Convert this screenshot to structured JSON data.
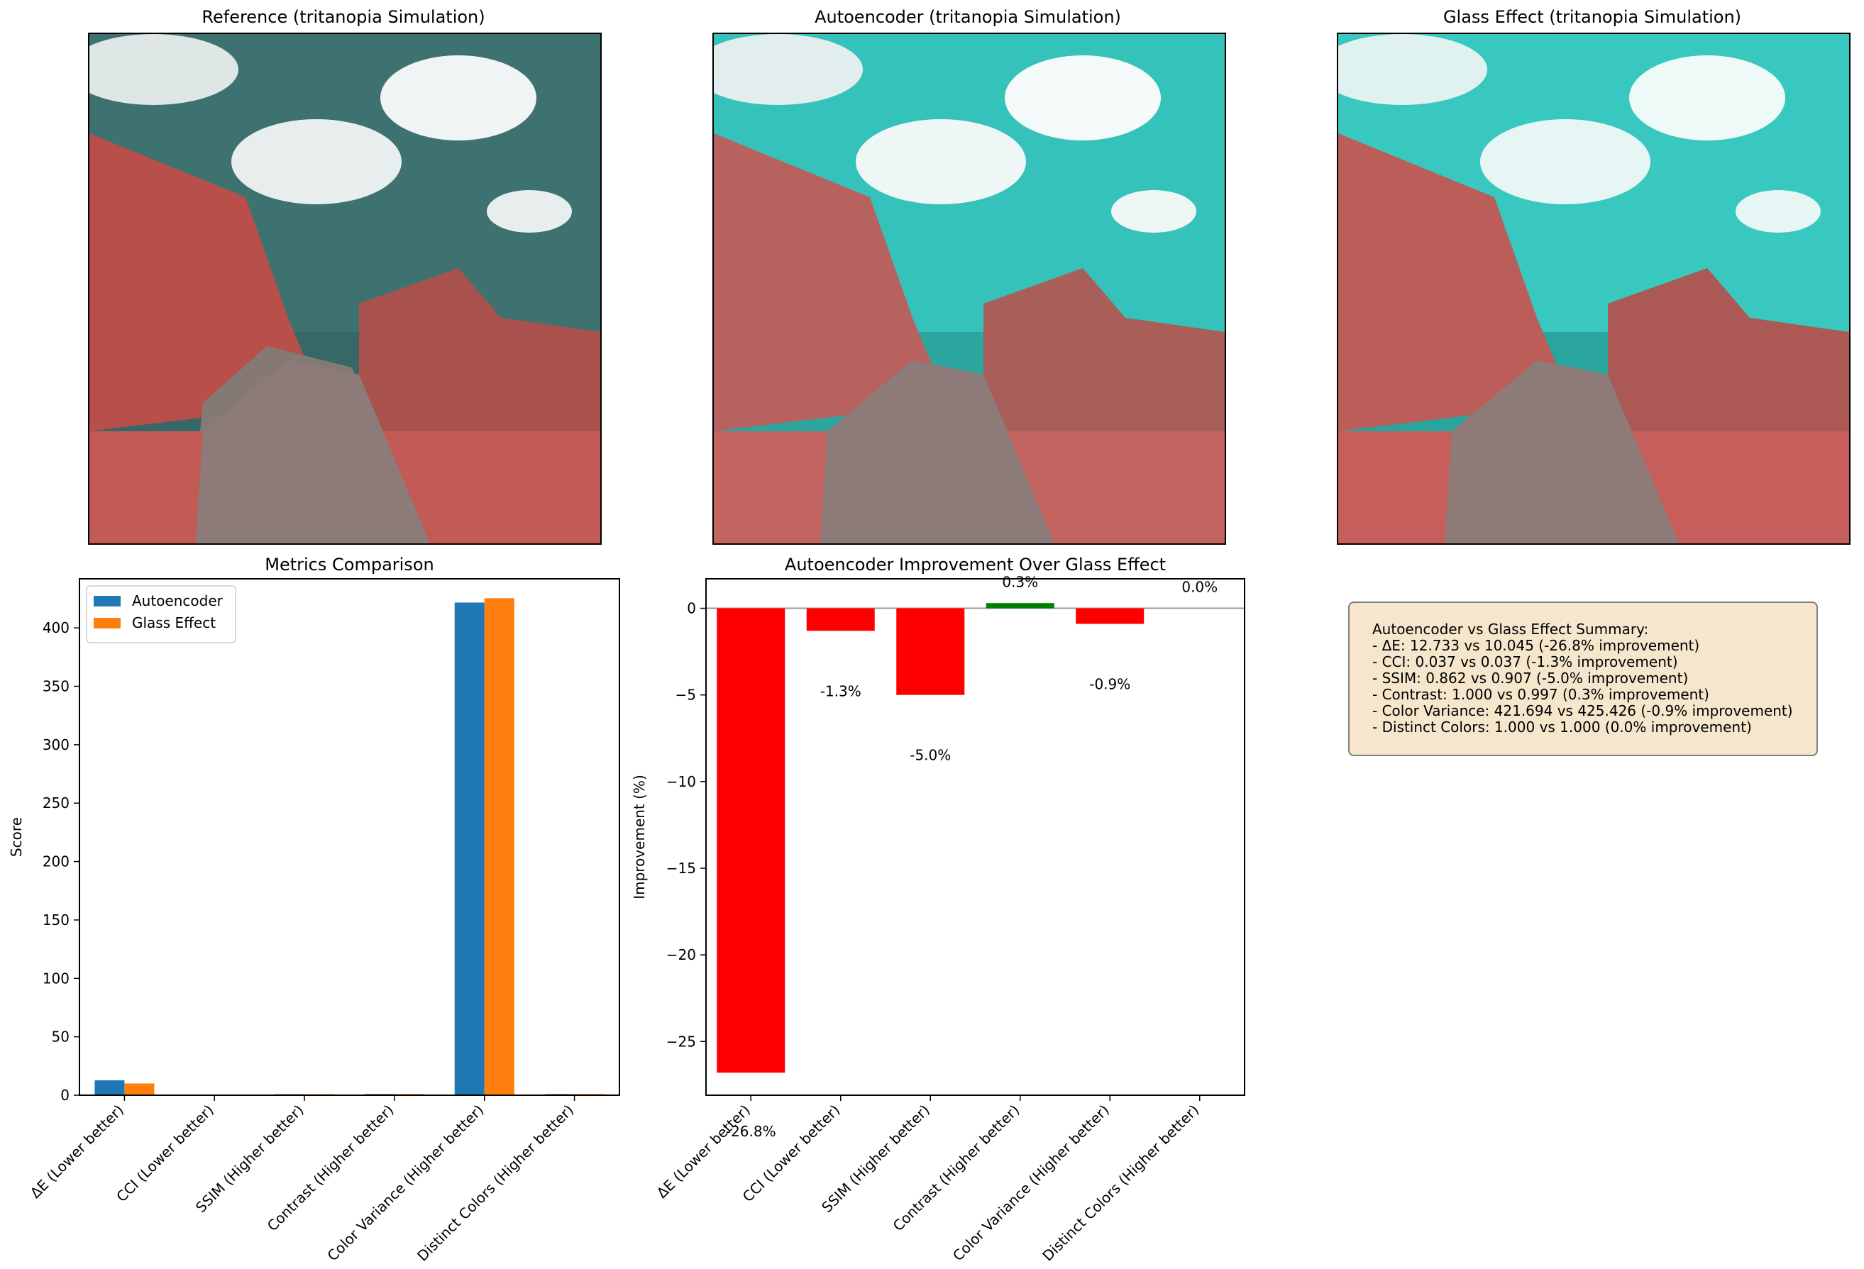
{
  "panels": {
    "reference_title": "Reference (tritanopia Simulation)",
    "autoencoder_title": "Autoencoder (tritanopia Simulation)",
    "glass_title": "Glass Effect (tritanopia Simulation)"
  },
  "colors": {
    "autoencoder": "#1f77b4",
    "glass": "#ff7f0e",
    "negative": "#ff0000",
    "positive": "#008000",
    "summary_bg": "#f5e6cc"
  },
  "summary": {
    "heading": "Autoencoder vs Glass Effect Summary:",
    "lines": [
      "- ΔE: 12.733 vs 10.045 (-26.8% improvement)",
      "- CCI: 0.037 vs 0.037 (-1.3% improvement)",
      "- SSIM: 0.862 vs 0.907 (-5.0% improvement)",
      "- Contrast: 1.000 vs 0.997 (0.3% improvement)",
      "- Color Variance: 421.694 vs 425.426 (-0.9% improvement)",
      "- Distinct Colors: 1.000 vs 1.000 (0.0% improvement)"
    ]
  },
  "chart_data": [
    {
      "type": "bar",
      "title": "Metrics Comparison",
      "xlabel": "",
      "ylabel": "Score",
      "categories": [
        "ΔE (Lower better)",
        "CCI (Lower better)",
        "SSIM (Higher better)",
        "Contrast (Higher better)",
        "Color Variance (Higher better)",
        "Distinct Colors (Higher better)"
      ],
      "series": [
        {
          "name": "Autoencoder",
          "values": [
            12.733,
            0.037,
            0.862,
            1.0,
            421.694,
            1.0
          ]
        },
        {
          "name": "Glass Effect",
          "values": [
            10.045,
            0.037,
            0.907,
            0.997,
            425.426,
            1.0
          ]
        }
      ],
      "ylim": [
        0,
        442
      ],
      "yticks": [
        0,
        50,
        100,
        150,
        200,
        250,
        300,
        350,
        400
      ],
      "legend": "top-left",
      "grid": false
    },
    {
      "type": "bar",
      "title": "Autoencoder Improvement Over Glass Effect",
      "xlabel": "",
      "ylabel": "Improvement (%)",
      "categories": [
        "ΔE (Lower better)",
        "CCI (Lower better)",
        "SSIM (Higher better)",
        "Contrast (Higher better)",
        "Color Variance (Higher better)",
        "Distinct Colors (Higher better)"
      ],
      "values": [
        -26.8,
        -1.3,
        -5.0,
        0.3,
        -0.9,
        0.0
      ],
      "labels": [
        "-26.8%",
        "-1.3%",
        "-5.0%",
        "0.3%",
        "-0.9%",
        "0.0%"
      ],
      "ylim": [
        -28.1,
        1.7
      ],
      "yticks": [
        0,
        -5,
        -10,
        -15,
        -20,
        -25
      ],
      "ytick_labels": [
        "0",
        "−5",
        "−10",
        "−15",
        "−20",
        "−25"
      ],
      "zero_line": true,
      "grid": false
    }
  ]
}
